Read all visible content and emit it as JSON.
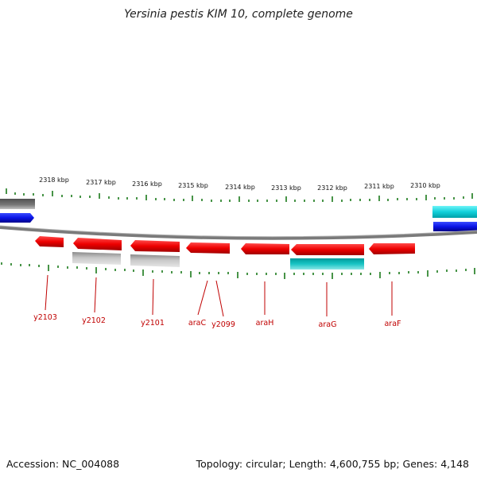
{
  "title": "Yersinia pestis KIM 10, complete genome",
  "footer": {
    "accession": "Accession: NC_004088",
    "summary": "Topology: circular; Length: 4,600,755 bp; Genes: 4,148"
  },
  "colors": {
    "gene_red": "#ff0000",
    "gene_gray": "#a6a6a6",
    "gene_dark_gray": "#666666",
    "gene_blue": "#0a14e6",
    "gene_cyan": "#00c8d2",
    "gene_teal": "#14b4b4",
    "tick_green": "#1a7a1a",
    "label_red": "#c00000",
    "backbone": "#808080"
  },
  "scale": {
    "labels": [
      "2318 kbp",
      "2317 kbp",
      "2316 kbp",
      "2315 kbp",
      "2314 kbp",
      "2313 kbp",
      "2312 kbp",
      "2311 kbp",
      "2310 kbp"
    ]
  },
  "genes": [
    {
      "name": "y2103",
      "strand": "reverse",
      "color": "red"
    },
    {
      "name": "y2102",
      "strand": "reverse",
      "color": "red"
    },
    {
      "name": "y2101",
      "strand": "reverse",
      "color": "red"
    },
    {
      "name": "araC",
      "strand": "reverse",
      "color": "red"
    },
    {
      "name": "y2099",
      "strand": "reverse",
      "color": "red"
    },
    {
      "name": "araH",
      "strand": "reverse",
      "color": "red"
    },
    {
      "name": "araG",
      "strand": "reverse",
      "color": "red"
    },
    {
      "name": "araF",
      "strand": "reverse",
      "color": "red"
    }
  ]
}
